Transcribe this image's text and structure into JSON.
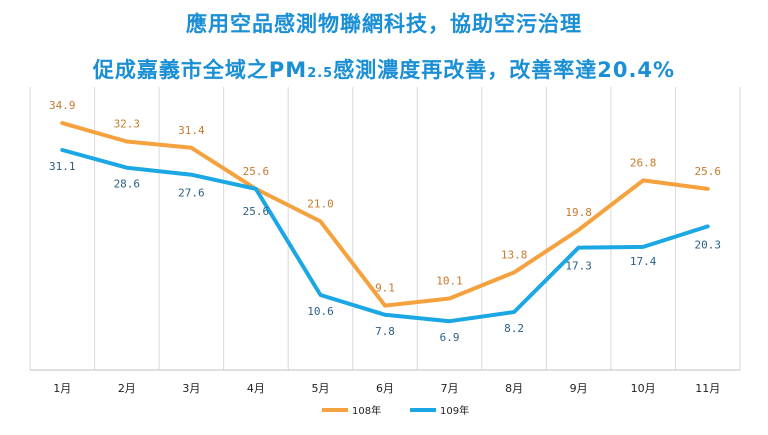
{
  "header": {
    "title_line1": "應用空品感測物聯網科技，協助空污治理",
    "title_line2_pre": "促成嘉義市全域之PM",
    "title_line2_sub": "2.5",
    "title_line2_post": "感測濃度再改善，改善率達20.4%"
  },
  "colors": {
    "title": "#1a8fd6",
    "series_108": "#f5a13d",
    "series_109": "#1aa7e3",
    "label_108": "#c77a2a",
    "label_109": "#2b5f86",
    "grid": "#d9d9d9"
  },
  "chart_data": {
    "type": "line",
    "categories": [
      "1月",
      "2月",
      "3月",
      "4月",
      "5月",
      "6月",
      "7月",
      "8月",
      "9月",
      "10月",
      "11月"
    ],
    "series": [
      {
        "name": "108年",
        "values": [
          34.9,
          32.3,
          31.4,
          25.6,
          21.0,
          9.1,
          10.1,
          13.8,
          19.8,
          26.8,
          25.6
        ],
        "labels": [
          "34.9",
          "32.3",
          "31.4",
          "25.6",
          "21.0",
          "9.1",
          "10.1",
          "13.8",
          "19.8",
          "26.8",
          "25.6"
        ]
      },
      {
        "name": "109年",
        "values": [
          31.1,
          28.6,
          27.6,
          25.6,
          10.6,
          7.8,
          6.9,
          8.2,
          17.3,
          17.4,
          20.3
        ],
        "labels": [
          "31.1",
          "28.6",
          "27.6",
          "25.6",
          "10.6",
          "7.8",
          "6.9",
          "8.2",
          "17.3",
          "17.4",
          "20.3"
        ]
      }
    ],
    "legend": "bottom-center",
    "grid": "vertical",
    "ylim": [
      0,
      40
    ]
  }
}
